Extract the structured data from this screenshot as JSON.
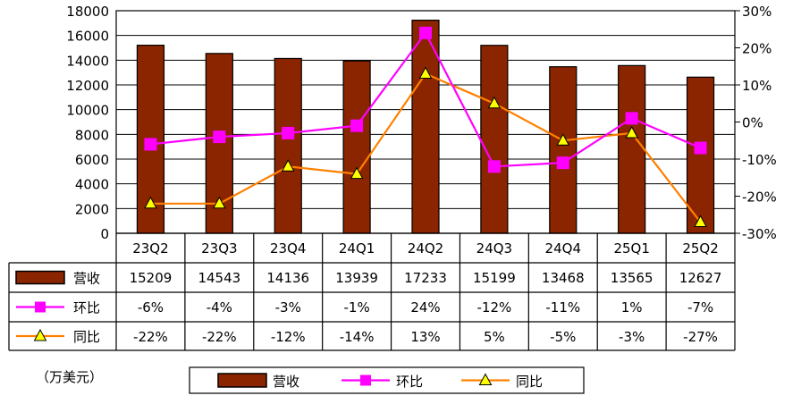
{
  "unit_label": "（万美元）",
  "colors": {
    "bar": "#8B2500",
    "bar_stroke": "#000000",
    "mom": "#FF00FF",
    "yoy": "#FF8000",
    "yoy_marker": "#FFFF00",
    "grid": "#000000"
  },
  "chart_data": {
    "type": "bar",
    "categories": [
      "23Q2",
      "23Q3",
      "23Q4",
      "24Q1",
      "24Q2",
      "24Q3",
      "24Q4",
      "25Q1",
      "25Q2"
    ],
    "series": [
      {
        "name": "营收",
        "type": "bar",
        "axis": "left",
        "values": [
          15209,
          14543,
          14136,
          13939,
          17233,
          15199,
          13468,
          13565,
          12627
        ]
      },
      {
        "name": "环比",
        "type": "line",
        "marker": "square",
        "axis": "right",
        "values": [
          -6,
          -4,
          -3,
          -1,
          24,
          -12,
          -11,
          1,
          -7
        ],
        "labels": [
          "-6%",
          "-4%",
          "-3%",
          "-1%",
          "24%",
          "-12%",
          "-11%",
          "1%",
          "-7%"
        ]
      },
      {
        "name": "同比",
        "type": "line",
        "marker": "triangle",
        "axis": "right",
        "values": [
          -22,
          -22,
          -12,
          -14,
          13,
          5,
          -5,
          -3,
          -27
        ],
        "labels": [
          "-22%",
          "-22%",
          "-12%",
          "-14%",
          "13%",
          "5%",
          "-5%",
          "-3%",
          "-27%"
        ]
      }
    ],
    "y_left": {
      "range": [
        0,
        18000
      ],
      "ticks": [
        "0",
        "2000",
        "4000",
        "6000",
        "8000",
        "10000",
        "12000",
        "14000",
        "16000",
        "18000"
      ]
    },
    "y_right": {
      "range": [
        -30,
        30
      ],
      "ticks": [
        "-30%",
        "-20%",
        "-10%",
        "0%",
        "10%",
        "20%",
        "30%"
      ]
    },
    "grid": "horizontal",
    "legend": "bottom",
    "data_table": true
  }
}
